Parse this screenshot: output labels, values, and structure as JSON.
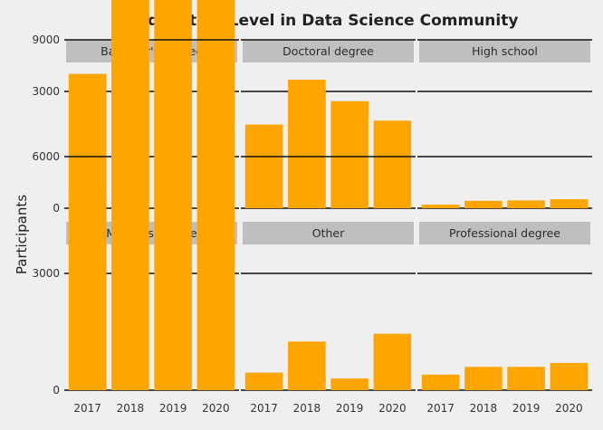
{
  "chart_data": {
    "type": "bar",
    "title": "Education Level in Data Science Community",
    "xlabel": "",
    "ylabel": "Participants",
    "categories": [
      "2017",
      "2018",
      "2019",
      "2020"
    ],
    "y_ticks": [
      "0",
      "3000",
      "6000",
      "9000"
    ],
    "ylim": [
      0,
      11000
    ],
    "bar_color": "#ffa500",
    "background": "#efefef",
    "strip_color": "#bfbfbf",
    "grid": true,
    "facets": [
      {
        "name": "Bachelor's degree",
        "values": [
          3450,
          6950,
          6000,
          6900
        ]
      },
      {
        "name": "Doctoral degree",
        "values": [
          2150,
          3300,
          2750,
          2250
        ]
      },
      {
        "name": "High school",
        "values": [
          90,
          190,
          200,
          230
        ]
      },
      {
        "name": "Master's degree",
        "values": [
          5150,
          10650,
          8500,
          7800
        ]
      },
      {
        "name": "Other",
        "values": [
          450,
          1250,
          300,
          1450
        ]
      },
      {
        "name": "Professional degree",
        "values": [
          400,
          600,
          600,
          700
        ]
      }
    ]
  }
}
